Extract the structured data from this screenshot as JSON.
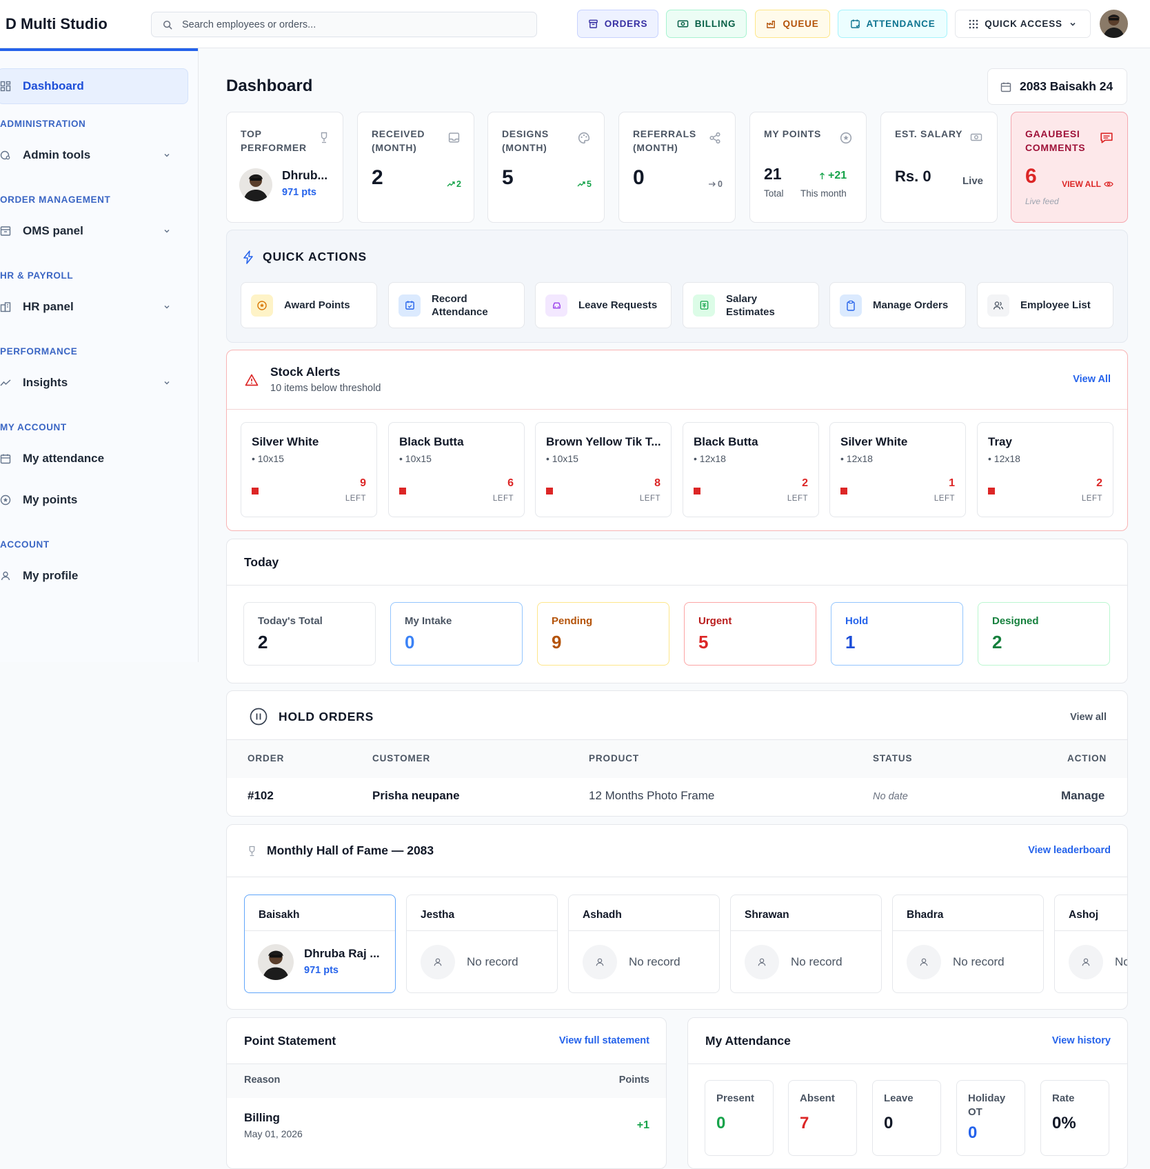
{
  "app": {
    "title": "D Multi Studio"
  },
  "search": {
    "placeholder": "Search employees or orders..."
  },
  "topnav": {
    "orders": "ORDERS",
    "billing": "BILLING",
    "queue": "QUEUE",
    "attendance": "ATTENDANCE",
    "quick_access": "QUICK ACCESS"
  },
  "sidebar": {
    "dashboard": "Dashboard",
    "sections": [
      "ADMINISTRATION",
      "ORDER MANAGEMENT",
      "HR & PAYROLL",
      "PERFORMANCE",
      "MY ACCOUNT",
      "ACCOUNT"
    ],
    "items": {
      "admin_tools": "Admin tools",
      "oms_panel": "OMS panel",
      "hr_panel": "HR panel",
      "insights": "Insights",
      "my_attendance": "My attendance",
      "my_points": "My points",
      "my_profile": "My profile"
    }
  },
  "page": {
    "title": "Dashboard",
    "date": "2083 Baisakh 24"
  },
  "stats": {
    "top_performer": {
      "label": "TOP PERFORMER",
      "name": "Dhrub...",
      "points": "971 pts"
    },
    "received": {
      "label": "RECEIVED (MONTH)",
      "value": "2",
      "trend": "2"
    },
    "designs": {
      "label": "DESIGNS (MONTH)",
      "value": "5",
      "trend": "5"
    },
    "referrals": {
      "label": "REFERRALS (MONTH)",
      "value": "0",
      "trend": "0"
    },
    "my_points": {
      "label": "MY POINTS",
      "value": "21",
      "delta": "+21",
      "total_label": "Total",
      "month_label": "This month"
    },
    "salary": {
      "label": "EST. SALARY",
      "value": "Rs. 0",
      "status": "Live"
    },
    "comments": {
      "label": "GAAUBESI COMMENTS",
      "value": "6",
      "view_all": "VIEW ALL",
      "feed": "Live feed"
    }
  },
  "quick_actions": {
    "title": "QUICK ACTIONS",
    "items": [
      "Award Points",
      "Record Attendance",
      "Leave Requests",
      "Salary Estimates",
      "Manage Orders",
      "Employee List"
    ]
  },
  "stock_alerts": {
    "title": "Stock Alerts",
    "subtitle": "10 items below threshold",
    "view_all": "View All",
    "left_label": "LEFT",
    "items": [
      {
        "name": "Silver White",
        "size": "• 10x15",
        "count": "9"
      },
      {
        "name": "Black Butta",
        "size": "• 10x15",
        "count": "6"
      },
      {
        "name": "Brown Yellow Tik T...",
        "size": "• 10x15",
        "count": "8"
      },
      {
        "name": "Black Butta",
        "size": "• 12x18",
        "count": "2"
      },
      {
        "name": "Silver White",
        "size": "• 12x18",
        "count": "1"
      },
      {
        "name": "Tray",
        "size": "• 12x18",
        "count": "2"
      }
    ]
  },
  "today": {
    "title": "Today",
    "boxes": [
      {
        "label": "Today's Total",
        "value": "2"
      },
      {
        "label": "My Intake",
        "value": "0"
      },
      {
        "label": "Pending",
        "value": "9"
      },
      {
        "label": "Urgent",
        "value": "5"
      },
      {
        "label": "Hold",
        "value": "1"
      },
      {
        "label": "Designed",
        "value": "2"
      }
    ]
  },
  "hold_orders": {
    "title": "HOLD ORDERS",
    "view_all": "View all",
    "columns": [
      "ORDER",
      "CUSTOMER",
      "PRODUCT",
      "STATUS",
      "ACTION"
    ],
    "rows": [
      {
        "order": "#102",
        "customer": "Prisha neupane",
        "product": "12 Months Photo Frame",
        "status": "No date",
        "action": "Manage"
      }
    ]
  },
  "hall_of_fame": {
    "title": "Monthly Hall of Fame — 2083",
    "view_leaderboard": "View leaderboard",
    "no_record": "No record",
    "months": [
      "Baisakh",
      "Jestha",
      "Ashadh",
      "Shrawan",
      "Bhadra",
      "Ashoj"
    ],
    "winner": {
      "name": "Dhruba Raj ...",
      "points": "971 pts"
    }
  },
  "point_statement": {
    "title": "Point Statement",
    "link": "View full statement",
    "col_reason": "Reason",
    "col_points": "Points",
    "rows": [
      {
        "reason": "Billing",
        "date": "May 01, 2026",
        "points": "+1"
      }
    ]
  },
  "my_attendance": {
    "title": "My Attendance",
    "link": "View history",
    "boxes": [
      {
        "label": "Present",
        "value": "0"
      },
      {
        "label": "Absent",
        "value": "7"
      },
      {
        "label": "Leave",
        "value": "0"
      },
      {
        "label": "Holiday OT",
        "value": "0"
      },
      {
        "label": "Rate",
        "value": "0%"
      }
    ]
  },
  "colors": {
    "accent": "#2563eb",
    "danger": "#dc2626",
    "success": "#16a34a",
    "warning": "#b45309"
  }
}
